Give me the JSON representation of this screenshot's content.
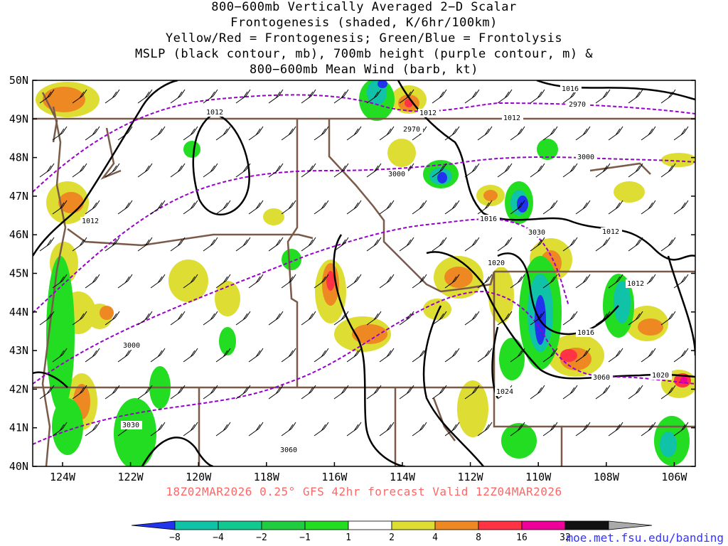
{
  "title": {
    "lines": [
      "800−600mb Vertically Averaged 2−D Scalar",
      "Frontogenesis (shaded, K/6hr/100km)",
      "Yellow/Red = Frontogenesis;  Green/Blue = Frontolysis",
      "MSLP (black contour, mb), 700mb height (purple contour, m) &",
      "800−600mb Mean Wind (barb, kt)"
    ]
  },
  "axes": {
    "lat_labels": [
      "50N",
      "49N",
      "48N",
      "47N",
      "46N",
      "45N",
      "44N",
      "43N",
      "42N",
      "41N",
      "40N"
    ],
    "lon_labels": [
      "124W",
      "122W",
      "120W",
      "118W",
      "116W",
      "114W",
      "112W",
      "110W",
      "108W",
      "106W"
    ]
  },
  "contour_labels": {
    "mslp": [
      "1016",
      "1012",
      "1012",
      "1012",
      "1012",
      "1016",
      "1012",
      "1020",
      "1012",
      "1016",
      "1024",
      "1020"
    ],
    "height": [
      "2970",
      "2970",
      "3000",
      "3000",
      "3030",
      "3000",
      "3060",
      "3030",
      "3060"
    ]
  },
  "valid_text": "18Z02MAR2026 0.25° GFS 42hr forecast Valid 12Z04MAR2026",
  "credit": "moe.met.fsu.edu/banding",
  "colorbar": {
    "labels": [
      "−8",
      "−4",
      "−2",
      "−1",
      "1",
      "2",
      "4",
      "8",
      "16",
      "32"
    ],
    "colors": [
      "#2233ee",
      "#10c2a8",
      "#10c890",
      "#20cc40",
      "#22dd22",
      "#ffffff",
      "#dddd33",
      "#ee8822",
      "#ff3344",
      "#ee0099",
      "#111111",
      "#aaaaaa"
    ]
  },
  "colors": {
    "state_border": "#7a5a48",
    "mslp_contour": "#000000",
    "height_contour": "#9900cc",
    "barb": "#000000"
  }
}
